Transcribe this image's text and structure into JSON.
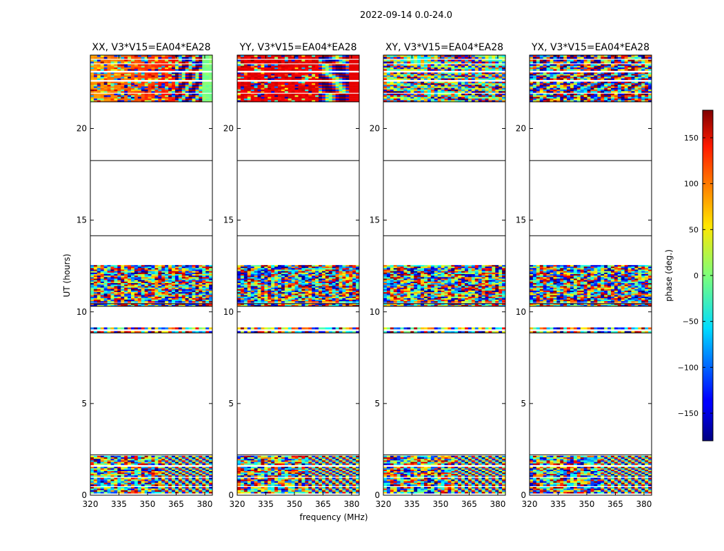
{
  "chart_data": {
    "type": "heatmap",
    "title": "2022-09-14 0.0-24.0",
    "xlabel": "frequency (MHz)",
    "ylabel": "UT (hours)",
    "xlim": [
      320,
      384
    ],
    "ylim": [
      0,
      24
    ],
    "xticks": [
      320,
      335,
      350,
      365,
      380
    ],
    "yticks": [
      0,
      5,
      10,
      15,
      20
    ],
    "panels": [
      {
        "name": "xx",
        "title": "XX, V3*V15=EA04*EA28"
      },
      {
        "name": "yy",
        "title": "YY, V3*V15=EA04*EA28"
      },
      {
        "name": "xy",
        "title": "XY, V3*V15=EA04*EA28"
      },
      {
        "name": "yx",
        "title": "YX, V3*V15=EA04*EA28"
      }
    ],
    "data_blocks_ut_hours": [
      [
        0.1,
        0.45
      ],
      [
        0.5,
        0.95
      ],
      [
        1.0,
        1.55
      ],
      [
        1.65,
        2.15
      ],
      [
        8.85,
        8.95
      ],
      [
        9.05,
        9.15
      ],
      [
        10.3,
        10.45
      ],
      [
        10.5,
        12.55
      ],
      [
        21.45,
        21.9
      ],
      [
        21.95,
        22.55
      ],
      [
        22.65,
        23.05
      ],
      [
        23.15,
        23.5
      ],
      [
        23.55,
        23.75
      ],
      [
        23.8,
        24.0
      ]
    ],
    "separator_lines_ut_hours": [
      2.2,
      8.85,
      10.3,
      10.45,
      14.15,
      18.25,
      21.45
    ],
    "colorbar": {
      "label": "phase (deg.)",
      "range": [
        -180,
        180
      ],
      "ticks": [
        -150,
        -100,
        -50,
        0,
        50,
        100,
        150
      ]
    }
  }
}
